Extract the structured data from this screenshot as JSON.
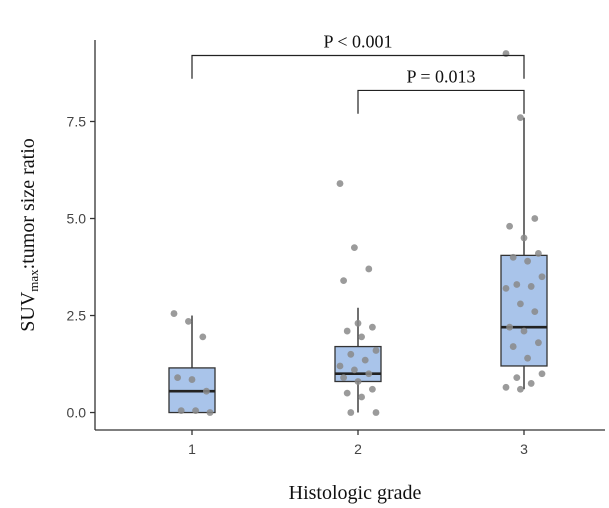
{
  "chart_data": {
    "type": "box",
    "xlabel": "Histologic grade",
    "ylabel_main": "SUV",
    "ylabel_sub": "max",
    "ylabel_rest": ":tumor size ratio",
    "categories": [
      "1",
      "2",
      "3"
    ],
    "yticks": [
      "0.0",
      "2.5",
      "5.0",
      "7.5"
    ],
    "ytick_values": [
      0,
      2.5,
      5,
      7.5
    ],
    "ylim": [
      -0.45,
      9.6
    ],
    "box_fill": "#a9c4ea",
    "box_stroke": "#333333",
    "point_color": "#8a8a8a",
    "boxes": [
      {
        "category": "1",
        "whisker_low": 0.0,
        "q1": 0.0,
        "median": 0.55,
        "q3": 1.15,
        "whisker_high": 2.5
      },
      {
        "category": "2",
        "whisker_low": 0.0,
        "q1": 0.8,
        "median": 1.0,
        "q3": 1.7,
        "whisker_high": 2.7
      },
      {
        "category": "3",
        "whisker_low": 0.6,
        "q1": 1.2,
        "median": 2.2,
        "q3": 4.05,
        "whisker_high": 7.6
      }
    ],
    "points": [
      {
        "category": "1",
        "values": [
          2.55,
          2.35,
          1.95,
          0.9,
          0.85,
          0.55,
          0.05,
          0.05,
          0.0
        ]
      },
      {
        "category": "2",
        "values": [
          5.9,
          4.25,
          3.7,
          3.4,
          2.3,
          2.2,
          2.1,
          1.95,
          1.6,
          1.5,
          1.35,
          1.2,
          1.1,
          1.0,
          0.9,
          0.8,
          0.6,
          0.5,
          0.4,
          0.0,
          0.0
        ]
      },
      {
        "category": "3",
        "values": [
          9.25,
          7.6,
          5.0,
          4.8,
          4.5,
          4.1,
          4.0,
          3.9,
          3.5,
          3.3,
          3.25,
          3.2,
          2.8,
          2.6,
          2.2,
          2.1,
          1.8,
          1.7,
          1.4,
          1.0,
          0.9,
          0.75,
          0.65,
          0.6
        ]
      }
    ],
    "brackets": [
      {
        "from": "1",
        "to": "3",
        "label": "P < 0.001",
        "y": 9.2,
        "drop_to": 8.6
      },
      {
        "from": "2",
        "to": "3",
        "label": "P = 0.013",
        "y": 8.3,
        "drop_to": 7.7
      }
    ]
  }
}
